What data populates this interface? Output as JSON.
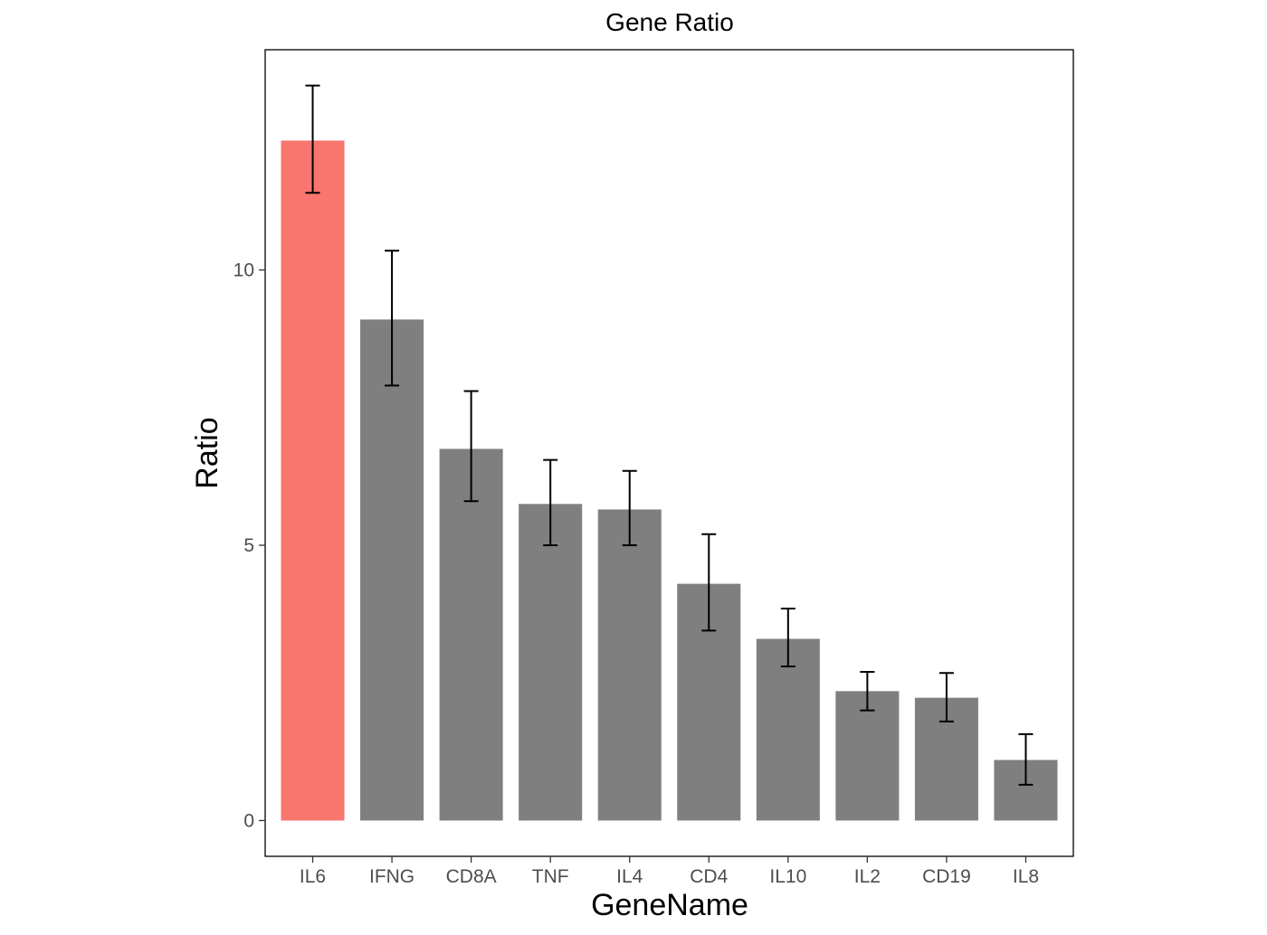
{
  "chart_data": {
    "type": "bar",
    "title": "Gene Ratio",
    "xlabel": "GeneName",
    "ylabel": "Ratio",
    "categories": [
      "IL6",
      "IFNG",
      "CD8A",
      "TNF",
      "IL4",
      "CD4",
      "IL10",
      "IL2",
      "CD19",
      "IL8"
    ],
    "values": [
      12.35,
      9.1,
      6.75,
      5.75,
      5.65,
      4.3,
      3.3,
      2.35,
      2.23,
      1.1
    ],
    "error_lower": [
      11.4,
      7.9,
      5.8,
      5.0,
      5.0,
      3.45,
      2.8,
      2.0,
      1.8,
      0.65
    ],
    "error_upper": [
      13.35,
      10.35,
      7.8,
      6.55,
      6.35,
      5.2,
      3.85,
      2.7,
      2.68,
      1.57
    ],
    "bar_colors": [
      "#F8766D",
      "#7F7F7F",
      "#7F7F7F",
      "#7F7F7F",
      "#7F7F7F",
      "#7F7F7F",
      "#7F7F7F",
      "#7F7F7F",
      "#7F7F7F",
      "#7F7F7F"
    ],
    "y_ticks": [
      0,
      5,
      10
    ],
    "ylim": [
      -0.65,
      14.0
    ],
    "grid": false,
    "legend": "none"
  }
}
